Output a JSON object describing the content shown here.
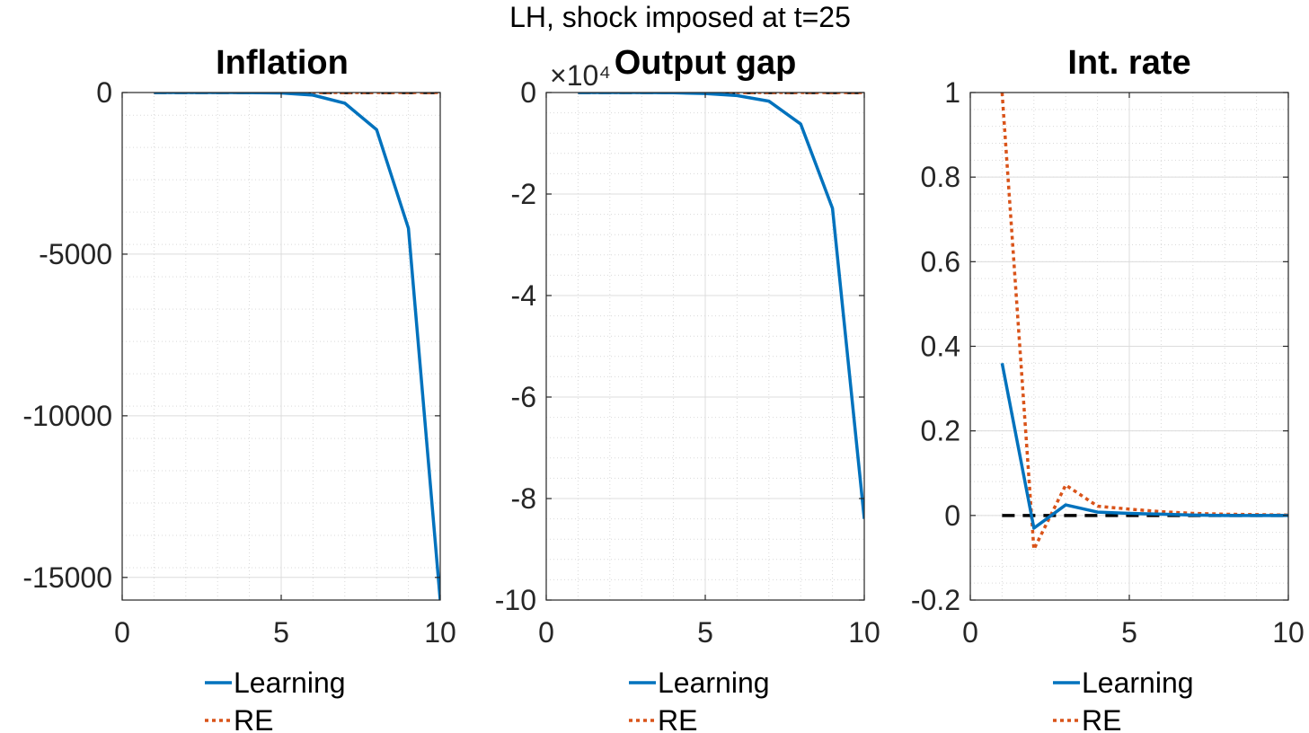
{
  "figure": {
    "suptitle": "LH, shock imposed at t=25"
  },
  "colors": {
    "learning": "#0072BD",
    "re": "#D95319",
    "zero_line": "#000000",
    "axis": "#262626"
  },
  "chart_data": [
    {
      "type": "line",
      "title": "Inflation",
      "xlim": [
        0,
        10
      ],
      "ylim": [
        -15700,
        0
      ],
      "xticks": [
        0,
        5,
        10
      ],
      "yticks": [
        0,
        -5000,
        -10000,
        -15000
      ],
      "ytick_labels": [
        "0",
        "-5000",
        "-10000",
        "-15000"
      ],
      "exponent_label": "",
      "grid": true,
      "legend_position": "below",
      "series": [
        {
          "name": "Learning",
          "style": "solid",
          "x": [
            1,
            2,
            3,
            4,
            5,
            6,
            7,
            8,
            9,
            10
          ],
          "y": [
            0,
            0,
            0,
            -2,
            -15,
            -80,
            -330,
            -1150,
            -4200,
            -15700
          ]
        },
        {
          "name": "RE",
          "style": "dotted",
          "x": [
            1,
            2,
            3,
            4,
            5,
            6,
            7,
            8,
            9,
            10
          ],
          "y": [
            0,
            0,
            0,
            0,
            0,
            0,
            0,
            0,
            0,
            0
          ]
        }
      ]
    },
    {
      "type": "line",
      "title": "Output gap",
      "xlim": [
        0,
        10
      ],
      "ylim": [
        -10,
        0
      ],
      "xticks": [
        0,
        5,
        10
      ],
      "yticks": [
        0,
        -2,
        -4,
        -6,
        -8,
        -10
      ],
      "ytick_labels": [
        "0",
        "-2",
        "-4",
        "-6",
        "-8",
        "-10"
      ],
      "exponent_label": "×10⁴",
      "grid": true,
      "legend_position": "below",
      "series": [
        {
          "name": "Learning",
          "style": "solid",
          "x": [
            1,
            2,
            3,
            4,
            5,
            6,
            7,
            8,
            9,
            10
          ],
          "y": [
            0,
            0,
            0,
            -0.005,
            -0.02,
            -0.06,
            -0.17,
            -0.62,
            -2.28,
            -8.4
          ]
        },
        {
          "name": "RE",
          "style": "dotted",
          "x": [
            1,
            2,
            3,
            4,
            5,
            6,
            7,
            8,
            9,
            10
          ],
          "y": [
            0,
            0,
            0,
            0,
            0,
            0,
            0,
            0,
            0,
            0
          ]
        }
      ]
    },
    {
      "type": "line",
      "title": "Int. rate",
      "xlim": [
        0,
        10
      ],
      "ylim": [
        -0.2,
        1
      ],
      "xticks": [
        0,
        5,
        10
      ],
      "yticks": [
        1,
        0.8,
        0.6,
        0.4,
        0.2,
        0,
        -0.2
      ],
      "ytick_labels": [
        "1",
        "0.8",
        "0.6",
        "0.4",
        "0.2",
        "0",
        "-0.2"
      ],
      "exponent_label": "",
      "grid": true,
      "legend_position": "below",
      "series": [
        {
          "name": "Learning",
          "style": "solid",
          "x": [
            1,
            2,
            3,
            4,
            5,
            6,
            7,
            8,
            9,
            10
          ],
          "y": [
            0.36,
            -0.03,
            0.025,
            0.008,
            0.005,
            0.003,
            0.001,
            0,
            0,
            0
          ]
        },
        {
          "name": "RE",
          "style": "dotted",
          "x": [
            1,
            2,
            3,
            4,
            5,
            6,
            7,
            8,
            9,
            10
          ],
          "y": [
            1.0,
            -0.08,
            0.072,
            0.022,
            0.015,
            0.009,
            0.005,
            0.003,
            0.002,
            0.001
          ]
        }
      ]
    }
  ]
}
